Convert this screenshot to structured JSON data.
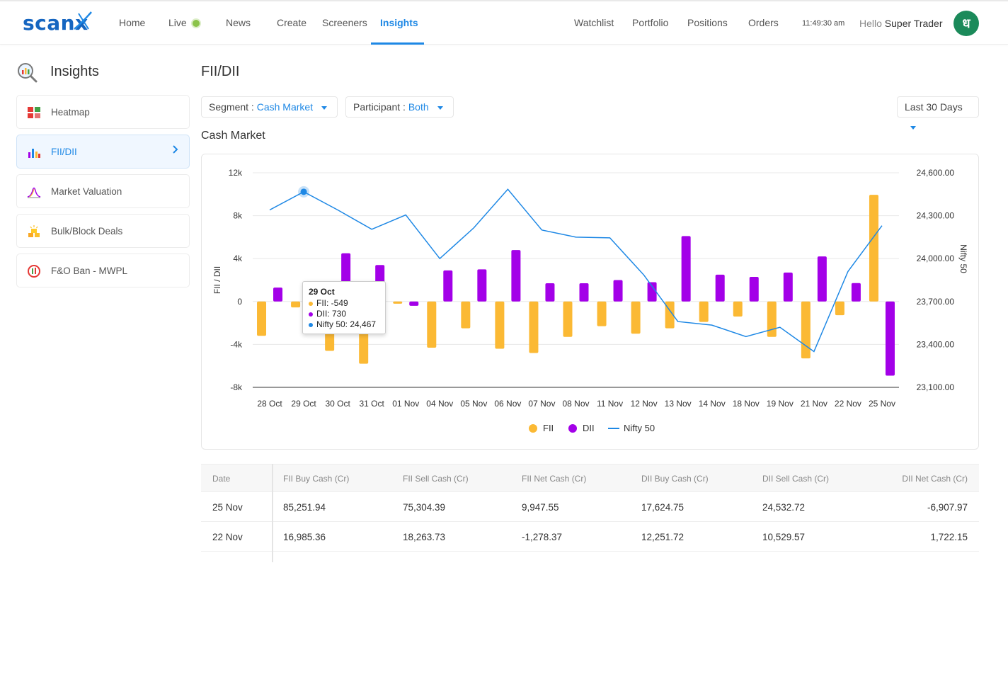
{
  "header": {
    "logo": "scanx",
    "nav": [
      "Home",
      "Live",
      "News",
      "Create",
      "Screeners",
      "Insights"
    ],
    "active": "Insights",
    "right_nav": [
      "Watchlist",
      "Portfolio",
      "Positions",
      "Orders"
    ],
    "time": "11:49:30 am",
    "hello_prefix": "Hello",
    "user_name": "Super Trader",
    "avatar_letter": "ध"
  },
  "sidebar": {
    "title": "Insights",
    "items": [
      {
        "label": "Heatmap",
        "icon": "heatmap-icon"
      },
      {
        "label": "FII/DII",
        "icon": "bar-chart-icon",
        "active": true
      },
      {
        "label": "Market Valuation",
        "icon": "bell-curve-icon"
      },
      {
        "label": "Bulk/Block Deals",
        "icon": "gold-bars-icon"
      },
      {
        "label": "F&O Ban - MWPL",
        "icon": "ban-icon"
      }
    ]
  },
  "main": {
    "title": "FII/DII",
    "segment_label": "Segment :",
    "segment_value": "Cash Market",
    "participant_label": "Participant :",
    "participant_value": "Both",
    "range_value": "Last 30 Days",
    "section_title": "Cash Market"
  },
  "tooltip": {
    "title": "29 Oct",
    "fii": "FII: -549",
    "dii": "DII: 730",
    "nifty": "Nifty 50: 24,467"
  },
  "colors": {
    "fii": "#fbb934",
    "dii": "#a300e8",
    "nifty": "#1e88e5"
  },
  "chart_data": {
    "type": "bar",
    "categories": [
      "28 Oct",
      "29 Oct",
      "30 Oct",
      "31 Oct",
      "01 Nov",
      "04 Nov",
      "05 Nov",
      "06 Nov",
      "07 Nov",
      "08 Nov",
      "11 Nov",
      "12 Nov",
      "13 Nov",
      "14 Nov",
      "18 Nov",
      "19 Nov",
      "21 Nov",
      "22 Nov",
      "25 Nov"
    ],
    "series": [
      {
        "name": "FII",
        "type": "bar",
        "axis": "left",
        "values": [
          -3200,
          -549,
          -4600,
          -5800,
          -200,
          -4300,
          -2500,
          -4400,
          -4800,
          -3300,
          -2300,
          -3000,
          -2500,
          -1900,
          -1400,
          -3300,
          -5300,
          -1278.37,
          9947.55
        ]
      },
      {
        "name": "DII",
        "type": "bar",
        "axis": "left",
        "values": [
          1300,
          730,
          4500,
          3400,
          -400,
          2900,
          3000,
          4800,
          1700,
          1700,
          2000,
          1800,
          6100,
          2500,
          2300,
          2700,
          4200,
          1722.15,
          -6907.97
        ]
      },
      {
        "name": "Nifty 50",
        "type": "line",
        "axis": "right",
        "values": [
          24340,
          24467,
          24340,
          24205,
          24305,
          24000,
          24215,
          24485,
          24200,
          24150,
          24145,
          23885,
          23560,
          23535,
          23455,
          23520,
          23350,
          23910,
          24230
        ]
      }
    ],
    "ylabel": "FII / DII",
    "y2label": "Nifty 50",
    "ylim": [
      -8000,
      12000
    ],
    "y2lim": [
      23100,
      24600
    ],
    "yticks": [
      "12k",
      "8k",
      "4k",
      "0",
      "-4k",
      "-8k"
    ],
    "y2ticks": [
      "24,600.00",
      "24,300.00",
      "24,000.00",
      "23,700.00",
      "23,400.00",
      "23,100.00"
    ],
    "highlight_index": 1
  },
  "table": {
    "headers": [
      "Date",
      "FII Buy Cash (Cr)",
      "FII Sell Cash (Cr)",
      "FII Net Cash (Cr)",
      "DII Buy Cash (Cr)",
      "DII Sell Cash (Cr)",
      "DII Net Cash (Cr)"
    ],
    "rows": [
      [
        "25 Nov",
        "85,251.94",
        "75,304.39",
        "9,947.55",
        "17,624.75",
        "24,532.72",
        "-6,907.97"
      ],
      [
        "22 Nov",
        "16,985.36",
        "18,263.73",
        "-1,278.37",
        "12,251.72",
        "10,529.57",
        "1,722.15"
      ]
    ]
  }
}
